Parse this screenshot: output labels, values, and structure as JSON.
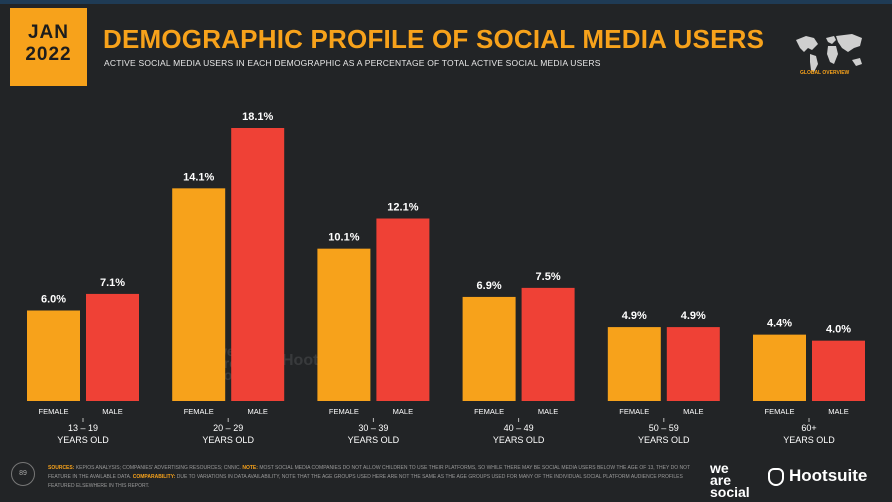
{
  "header": {
    "date_line1": "JAN",
    "date_line2": "2022",
    "title": "DEMOGRAPHIC PROFILE OF SOCIAL MEDIA USERS",
    "subtitle": "ACTIVE SOCIAL MEDIA USERS IN EACH DEMOGRAPHIC AS A PERCENTAGE OF TOTAL ACTIVE SOCIAL MEDIA USERS",
    "map_label": "GLOBAL OVERVIEW"
  },
  "colors": {
    "female": "#f7a21b",
    "male": "#ef4136",
    "background": "#222426",
    "accent": "#f7a21b"
  },
  "chart_data": {
    "type": "bar",
    "categories": [
      "13 – 19",
      "20 – 29",
      "30 – 39",
      "40 – 49",
      "50 – 59",
      "60+"
    ],
    "category_sublabel": "YEARS OLD",
    "series": [
      {
        "name": "FEMALE",
        "values": [
          6.0,
          14.1,
          10.1,
          6.9,
          4.9,
          4.4
        ],
        "labels": [
          "6.0%",
          "14.1%",
          "10.1%",
          "6.9%",
          "4.9%",
          "4.4%"
        ]
      },
      {
        "name": "MALE",
        "values": [
          7.1,
          18.1,
          12.1,
          7.5,
          4.9,
          4.0
        ],
        "labels": [
          "7.1%",
          "18.1%",
          "12.1%",
          "7.5%",
          "4.9%",
          "4.0%"
        ]
      }
    ],
    "ylim": [
      0,
      18.1
    ],
    "legend": "none"
  },
  "footer": {
    "page_number": "89",
    "sources_label": "SOURCES:",
    "sources_text": "KEPIOS ANALYSIS; COMPANIES' ADVERTISING RESOURCES; CNNIC.",
    "note_label": "NOTE:",
    "note_text": "MOST SOCIAL MEDIA COMPANIES DO NOT ALLOW CHILDREN TO USE THEIR PLATFORMS, SO WHILE THERE MAY BE SOCIAL MEDIA USERS BELOW THE AGE OF 13, THEY DO NOT FEATURE IN THE AVAILABLE DATA.",
    "comparability_label": "COMPARABILITY:",
    "comparability_text": "DUE TO VARIATIONS IN DATA AVAILABILITY, NOTE THAT THE AGE GROUPS USED HERE ARE NOT THE SAME AS THE AGE GROUPS USED FOR MANY OF THE INDIVIDUAL SOCIAL PLATFORM AUDIENCE PROFILES FEATURED ELSEWHERE IN THIS REPORT.",
    "brand1_line1": "we",
    "brand1_line2": "are",
    "brand1_line3": "social",
    "brand2": "Hootsuite"
  }
}
